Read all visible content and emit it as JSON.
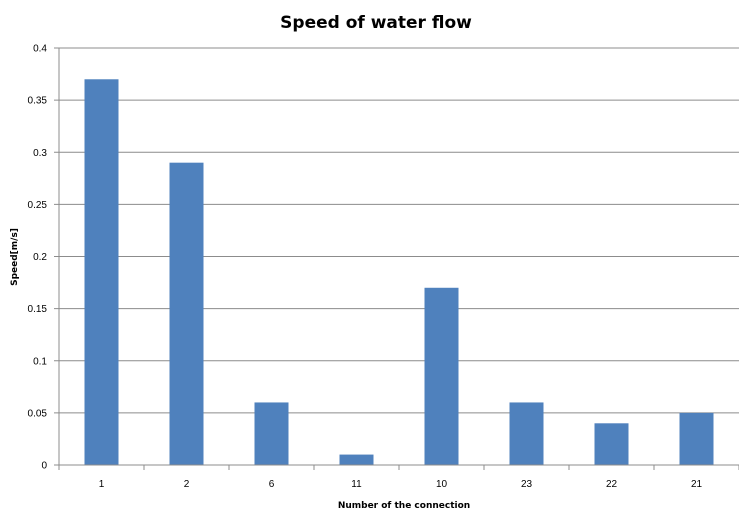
{
  "chart_data": {
    "type": "bar",
    "title": "Speed of water flow",
    "xlabel": "Number of the connection",
    "ylabel": "Speed[m/s]",
    "categories": [
      "1",
      "2",
      "6",
      "11",
      "10",
      "23",
      "22",
      "21"
    ],
    "values": [
      0.37,
      0.29,
      0.06,
      0.01,
      0.17,
      0.06,
      0.04,
      0.05
    ],
    "ylim": [
      0,
      0.4
    ],
    "yticks": [
      "0",
      "0.05",
      "0.1",
      "0.15",
      "0.2",
      "0.25",
      "0.3",
      "0.35",
      "0.4"
    ],
    "grid": true,
    "legend": "none",
    "bar_color": "#4f81bd",
    "grid_color": "#8c8c8c"
  }
}
